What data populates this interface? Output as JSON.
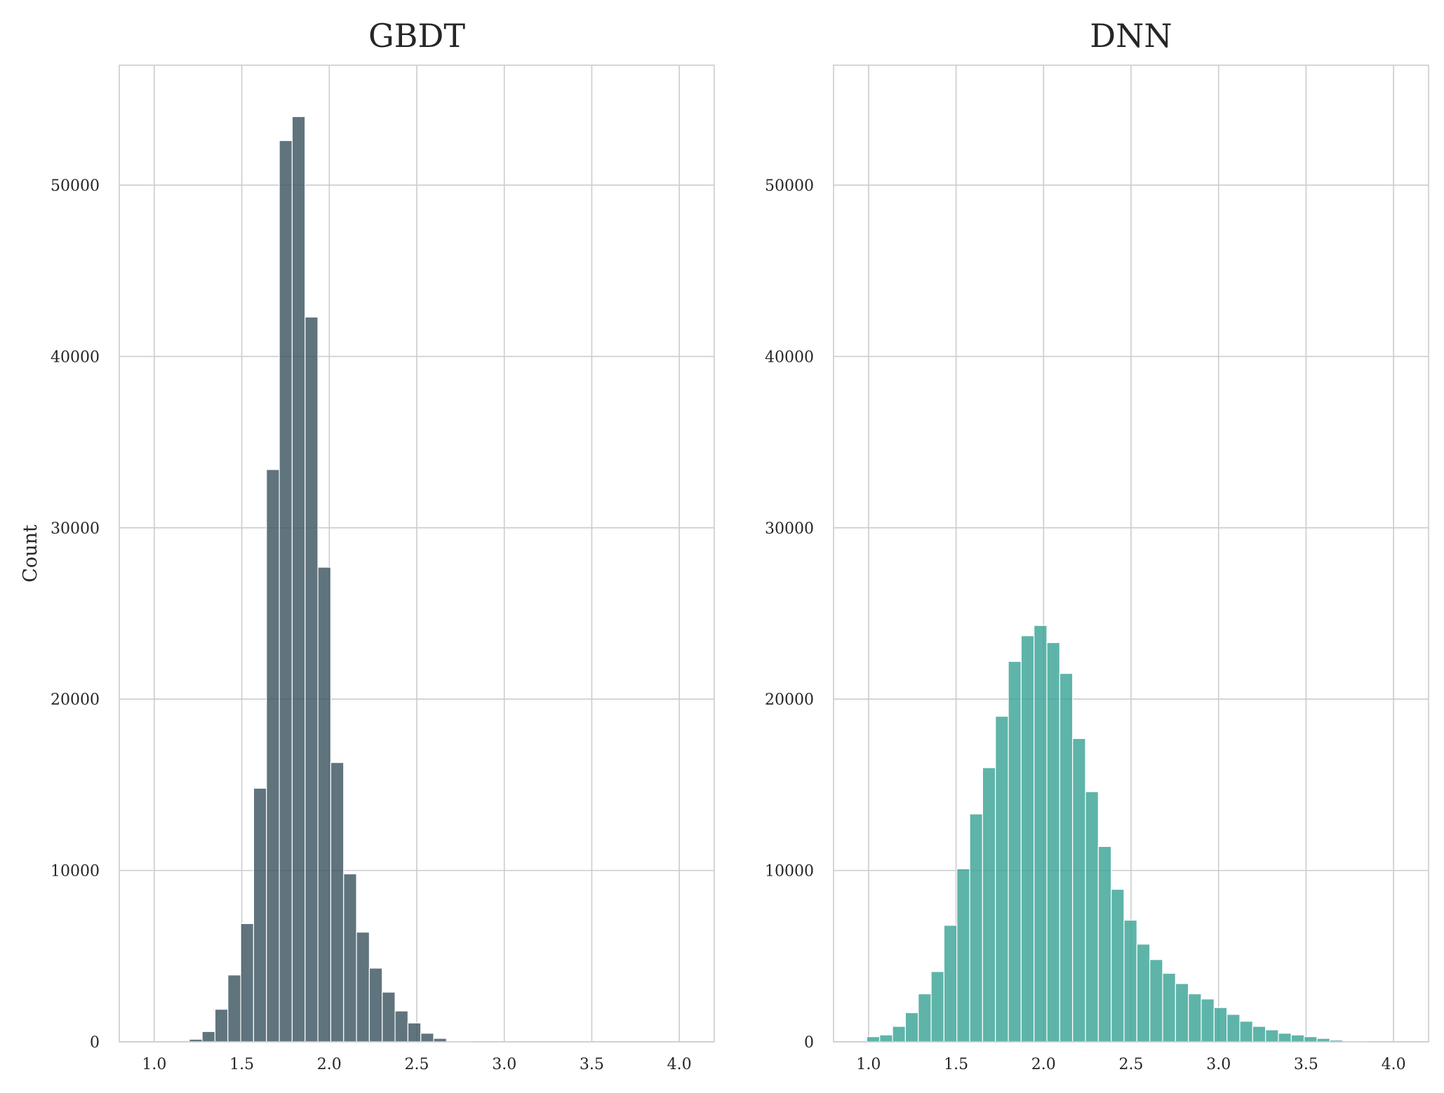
{
  "chart_data": [
    {
      "type": "bar",
      "title": "GBDT",
      "xlabel": "",
      "ylabel": "Count",
      "xlim": [
        0.8,
        4.2
      ],
      "ylim": [
        0,
        57000
      ],
      "xticks": [
        "1.0",
        "1.5",
        "2.0",
        "2.5",
        "3.0",
        "3.5",
        "4.0"
      ],
      "xtick_values": [
        1.0,
        1.5,
        2.0,
        2.5,
        3.0,
        3.5,
        4.0
      ],
      "yticks": [
        "0",
        "10000",
        "20000",
        "30000",
        "40000",
        "50000"
      ],
      "ytick_values": [
        0,
        10000,
        20000,
        30000,
        40000,
        50000
      ],
      "grid": true,
      "color": "#3d5562",
      "bins": {
        "start": 1.2,
        "width": 0.0735,
        "values": [
          150,
          600,
          1900,
          3900,
          6900,
          14800,
          33400,
          52600,
          54000,
          42300,
          27700,
          16300,
          9800,
          6400,
          4300,
          2900,
          1800,
          1100,
          500,
          200,
          50,
          20
        ]
      }
    },
    {
      "type": "bar",
      "title": "DNN",
      "xlabel": "",
      "ylabel": "",
      "xlim": [
        0.8,
        4.2
      ],
      "ylim": [
        0,
        57000
      ],
      "xticks": [
        "1.0",
        "1.5",
        "2.0",
        "2.5",
        "3.0",
        "3.5",
        "4.0"
      ],
      "xtick_values": [
        1.0,
        1.5,
        2.0,
        2.5,
        3.0,
        3.5,
        4.0
      ],
      "yticks": [
        "0",
        "10000",
        "20000",
        "30000",
        "40000",
        "50000"
      ],
      "ytick_values": [
        0,
        10000,
        20000,
        30000,
        40000,
        50000
      ],
      "grid": true,
      "color": "#3aa396",
      "bins": {
        "start": 0.99,
        "width": 0.0735,
        "values": [
          300,
          400,
          900,
          1700,
          2800,
          4100,
          6800,
          10100,
          13300,
          16000,
          19000,
          22200,
          23700,
          24300,
          23300,
          21500,
          17700,
          14600,
          11400,
          8900,
          7100,
          5700,
          4800,
          4000,
          3400,
          2800,
          2500,
          2000,
          1600,
          1200,
          900,
          700,
          500,
          400,
          300,
          200,
          100,
          50,
          30
        ]
      }
    }
  ]
}
